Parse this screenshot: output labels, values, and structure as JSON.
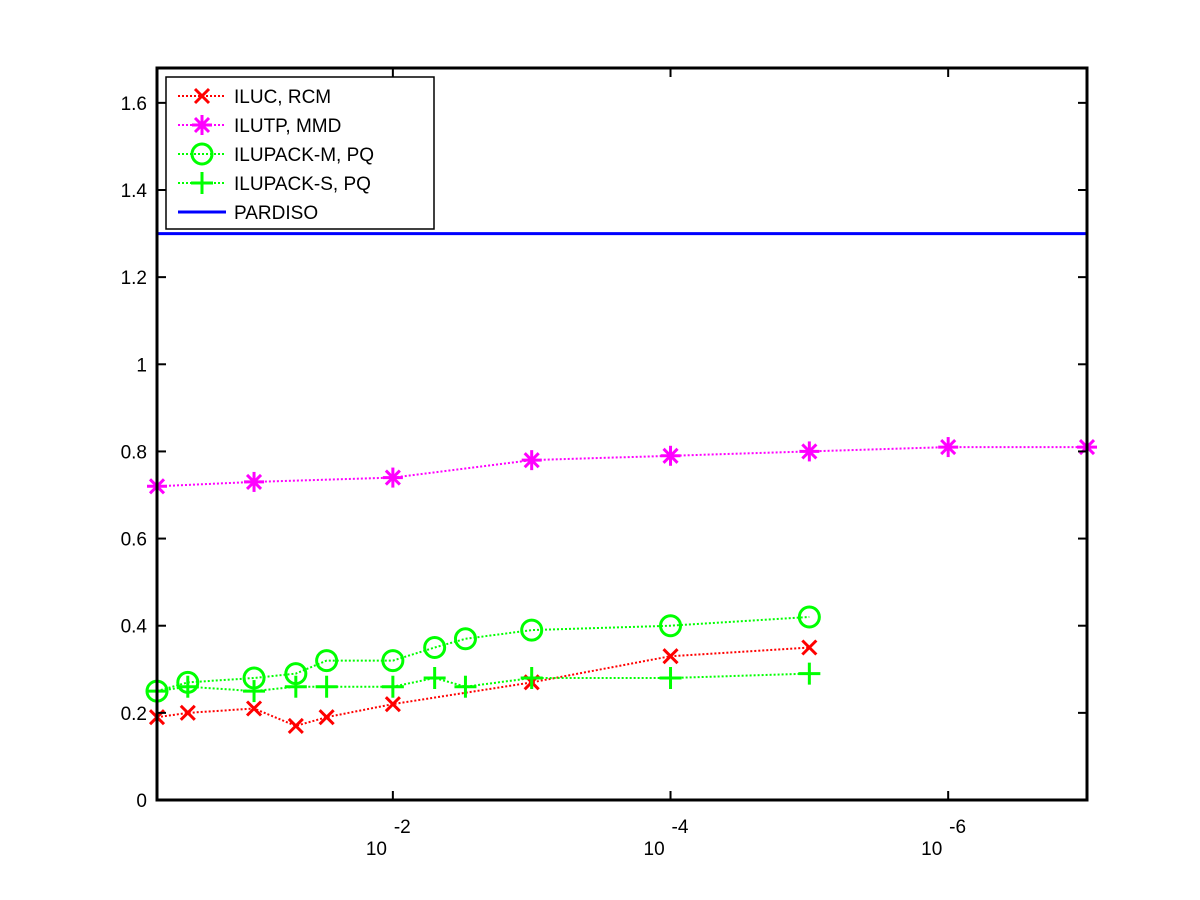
{
  "chart_data": {
    "type": "line",
    "title": "",
    "xlabel": "",
    "ylabel": "",
    "x_scale": "log-reversed",
    "xlim": [
      0.5,
      1e-07
    ],
    "ylim": [
      0,
      1.68
    ],
    "grid": false,
    "legend_position": "top-left",
    "x_ticks": [
      {
        "value": 0.01,
        "base": "10",
        "exponent": "-2"
      },
      {
        "value": 0.0001,
        "base": "10",
        "exponent": "-4"
      },
      {
        "value": 1e-06,
        "base": "10",
        "exponent": "-6"
      }
    ],
    "y_ticks": [
      "0",
      "0.2",
      "0.4",
      "0.6",
      "0.8",
      "1",
      "1.2",
      "1.4",
      "1.6"
    ],
    "y_tick_values": [
      0,
      0.2,
      0.4,
      0.6,
      0.8,
      1.0,
      1.2,
      1.4,
      1.6
    ],
    "series": [
      {
        "name": "ILUC, RCM",
        "color": "#ff0000",
        "marker": "x",
        "linestyle": "dotted",
        "x": [
          0.5,
          0.3,
          0.1,
          0.05,
          0.03,
          0.01,
          0.001,
          0.0001,
          1e-05
        ],
        "y": [
          0.19,
          0.2,
          0.21,
          0.17,
          0.19,
          0.22,
          0.27,
          0.33,
          0.35
        ]
      },
      {
        "name": "ILUTP, MMD",
        "color": "#ff00ff",
        "marker": "asterisk",
        "linestyle": "dotted",
        "x": [
          0.5,
          0.1,
          0.01,
          0.001,
          0.0001,
          1e-05,
          1e-06,
          1e-07
        ],
        "y": [
          0.72,
          0.73,
          0.74,
          0.78,
          0.79,
          0.8,
          0.81,
          0.81
        ]
      },
      {
        "name": "ILUPACK-M, PQ",
        "color": "#00ff00",
        "marker": "circle",
        "linestyle": "dotted",
        "x": [
          0.5,
          0.3,
          0.1,
          0.05,
          0.03,
          0.01,
          0.005,
          0.003,
          0.001,
          0.0001,
          1e-05
        ],
        "y": [
          0.25,
          0.27,
          0.28,
          0.29,
          0.32,
          0.32,
          0.35,
          0.37,
          0.39,
          0.4,
          0.42
        ]
      },
      {
        "name": "ILUPACK-S, PQ",
        "color": "#00ff00",
        "marker": "plus",
        "linestyle": "dotted",
        "x": [
          0.5,
          0.3,
          0.1,
          0.05,
          0.03,
          0.01,
          0.005,
          0.003,
          0.001,
          0.0001,
          1e-05
        ],
        "y": [
          0.25,
          0.26,
          0.25,
          0.26,
          0.26,
          0.26,
          0.28,
          0.26,
          0.28,
          0.28,
          0.29
        ]
      },
      {
        "name": "PARDISO",
        "color": "#0000ff",
        "marker": "none",
        "linestyle": "solid",
        "x": [
          0.5,
          1e-07
        ],
        "y": [
          1.3,
          1.3
        ]
      }
    ]
  }
}
